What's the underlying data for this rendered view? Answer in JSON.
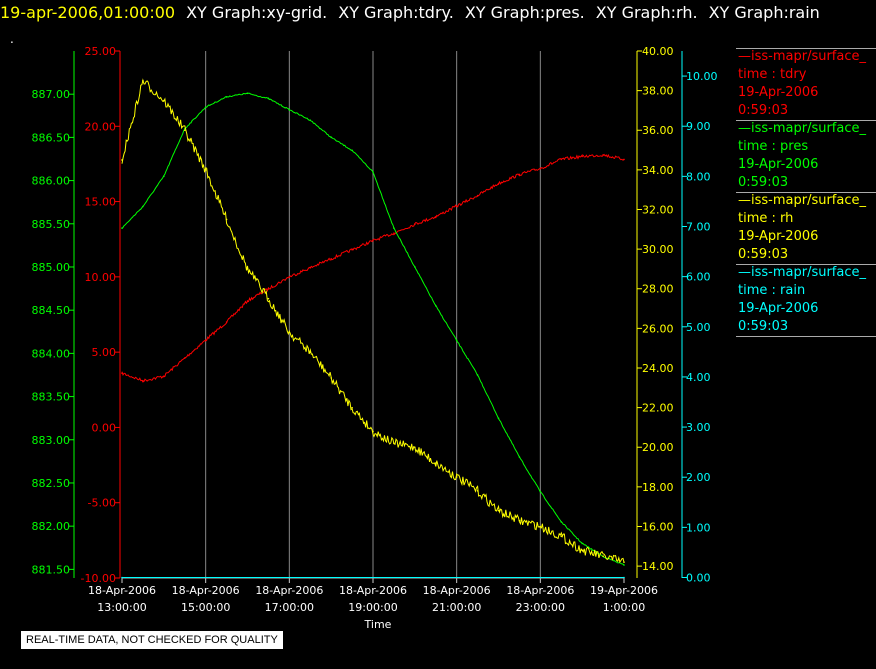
{
  "header": {
    "timestamp": "19-apr-2006,01:00:00",
    "graphs": [
      "XY Graph:xy-grid.",
      "XY Graph:tdry.",
      "XY Graph:pres.",
      "XY Graph:rh.",
      "XY Graph:rain"
    ],
    "mark": "."
  },
  "legend": [
    {
      "name": "iss-mapr/surface_",
      "var": "time : tdry",
      "date": "19-Apr-2006",
      "time": "0:59:03",
      "color": "#ff0000"
    },
    {
      "name": "iss-mapr/surface_",
      "var": "time : pres",
      "date": "19-Apr-2006",
      "time": "0:59:03",
      "color": "#00ff00"
    },
    {
      "name": "iss-mapr/surface_",
      "var": "time : rh",
      "date": "19-Apr-2006",
      "time": "0:59:03",
      "color": "#ffff00"
    },
    {
      "name": "iss-mapr/surface_",
      "var": "time : rain",
      "date": "19-Apr-2006",
      "time": "0:59:03",
      "color": "#00ffff"
    }
  ],
  "disclaimer": "REAL-TIME DATA, NOT CHECKED FOR QUALITY",
  "colors": {
    "tdry": "#ff0000",
    "pres": "#00ff00",
    "rh": "#ffff00",
    "rain": "#00ffff",
    "grid": "#888888"
  },
  "chart_data": {
    "type": "line",
    "xlabel": "Time",
    "x_ticks": [
      {
        "date": "18-Apr-2006",
        "time": "13:00:00"
      },
      {
        "date": "18-Apr-2006",
        "time": "15:00:00"
      },
      {
        "date": "18-Apr-2006",
        "time": "17:00:00"
      },
      {
        "date": "18-Apr-2006",
        "time": "19:00:00"
      },
      {
        "date": "18-Apr-2006",
        "time": "21:00:00"
      },
      {
        "date": "18-Apr-2006",
        "time": "23:00:00"
      },
      {
        "date": "19-Apr-2006",
        "time": "1:00:00"
      }
    ],
    "xlim": [
      "2006-04-18 13:00",
      "2006-04-19 01:00"
    ],
    "grid": true,
    "axes": {
      "pres": {
        "ylim": [
          881.4,
          887.5
        ],
        "ticks": [
          "881.50",
          "882.00",
          "882.50",
          "883.00",
          "883.50",
          "884.00",
          "884.50",
          "885.00",
          "885.50",
          "886.00",
          "886.50",
          "887.00"
        ]
      },
      "tdry": {
        "ylim": [
          -10,
          25
        ],
        "ticks": [
          "-10.00",
          "-5.00",
          "0.00",
          "5.00",
          "10.00",
          "15.00",
          "20.00",
          "25.00"
        ]
      },
      "rh": {
        "ylim": [
          13.4,
          40
        ],
        "ticks": [
          "14.00",
          "16.00",
          "18.00",
          "20.00",
          "22.00",
          "24.00",
          "26.00",
          "28.00",
          "30.00",
          "32.00",
          "34.00",
          "36.00",
          "38.00",
          "40.00"
        ]
      },
      "rain": {
        "ylim": [
          -0.01,
          10.5
        ],
        "ticks": [
          "0.00",
          "1.00",
          "2.00",
          "3.00",
          "4.00",
          "5.00",
          "6.00",
          "7.00",
          "8.00",
          "9.00",
          "10.00"
        ]
      }
    },
    "series": [
      {
        "name": "tdry",
        "axis": "tdry",
        "x": [
          "2006-04-18 13:00",
          "2006-04-18 13:30",
          "2006-04-18 14:00",
          "2006-04-18 14:30",
          "2006-04-18 15:00",
          "2006-04-18 15:30",
          "2006-04-18 16:00",
          "2006-04-18 16:30",
          "2006-04-18 17:00",
          "2006-04-18 17:30",
          "2006-04-18 18:00",
          "2006-04-18 18:30",
          "2006-04-18 19:00",
          "2006-04-18 19:30",
          "2006-04-18 20:00",
          "2006-04-18 20:30",
          "2006-04-18 21:00",
          "2006-04-18 21:30",
          "2006-04-18 22:00",
          "2006-04-18 22:30",
          "2006-04-18 23:00",
          "2006-04-18 23:30",
          "2006-04-19 00:00",
          "2006-04-19 00:30",
          "2006-04-19 01:00"
        ],
        "y": [
          3.6,
          3.1,
          3.4,
          4.6,
          5.8,
          7.0,
          8.4,
          9.2,
          10.0,
          10.6,
          11.2,
          11.8,
          12.4,
          12.9,
          13.5,
          14.0,
          14.7,
          15.4,
          16.2,
          16.8,
          17.2,
          17.8,
          18.0,
          18.1,
          17.8
        ]
      },
      {
        "name": "pres",
        "axis": "pres",
        "x": [
          "2006-04-18 13:00",
          "2006-04-18 13:30",
          "2006-04-18 14:00",
          "2006-04-18 14:30",
          "2006-04-18 15:00",
          "2006-04-18 15:30",
          "2006-04-18 16:00",
          "2006-04-18 16:30",
          "2006-04-18 17:00",
          "2006-04-18 17:30",
          "2006-04-18 18:00",
          "2006-04-18 18:30",
          "2006-04-18 19:00",
          "2006-04-18 19:30",
          "2006-04-18 20:00",
          "2006-04-18 20:30",
          "2006-04-18 21:00",
          "2006-04-18 21:30",
          "2006-04-18 22:00",
          "2006-04-18 22:30",
          "2006-04-18 23:00",
          "2006-04-18 23:30",
          "2006-04-19 00:00",
          "2006-04-19 00:30",
          "2006-04-19 01:00"
        ],
        "y": [
          885.45,
          885.7,
          886.05,
          886.6,
          886.85,
          886.97,
          887.01,
          886.95,
          886.82,
          886.7,
          886.5,
          886.35,
          886.1,
          885.45,
          885.0,
          884.55,
          884.15,
          883.75,
          883.25,
          882.8,
          882.4,
          882.05,
          881.8,
          881.65,
          881.55
        ]
      },
      {
        "name": "rh",
        "axis": "rh",
        "x": [
          "2006-04-18 13:00",
          "2006-04-18 13:30",
          "2006-04-18 14:00",
          "2006-04-18 14:30",
          "2006-04-18 15:00",
          "2006-04-18 15:30",
          "2006-04-18 16:00",
          "2006-04-18 16:30",
          "2006-04-18 17:00",
          "2006-04-18 17:30",
          "2006-04-18 18:00",
          "2006-04-18 18:30",
          "2006-04-18 19:00",
          "2006-04-18 19:30",
          "2006-04-18 20:00",
          "2006-04-18 20:30",
          "2006-04-18 21:00",
          "2006-04-18 21:30",
          "2006-04-18 22:00",
          "2006-04-18 22:30",
          "2006-04-18 23:00",
          "2006-04-18 23:30",
          "2006-04-19 00:00",
          "2006-04-19 00:30",
          "2006-04-19 01:00"
        ],
        "y": [
          34.5,
          38.5,
          37.5,
          36.0,
          34.0,
          31.5,
          29.0,
          27.5,
          25.8,
          24.8,
          23.5,
          22.0,
          20.8,
          20.2,
          20.0,
          19.2,
          18.5,
          17.8,
          16.8,
          16.3,
          16.0,
          15.5,
          14.8,
          14.5,
          14.2
        ]
      },
      {
        "name": "rain",
        "axis": "rain",
        "x": [
          "2006-04-18 13:00",
          "2006-04-19 01:00"
        ],
        "y": [
          0.0,
          0.0
        ]
      }
    ]
  }
}
